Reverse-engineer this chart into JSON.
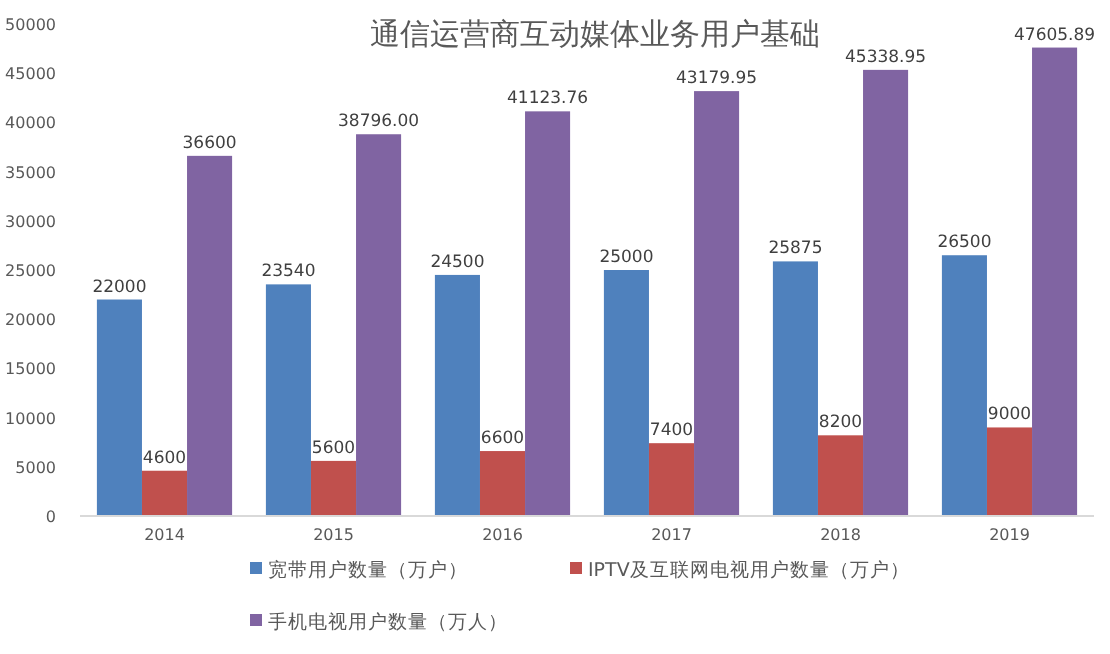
{
  "chart_data": {
    "type": "bar",
    "title": "通信运营商互动媒体业务用户基础",
    "categories": [
      "2014",
      "2015",
      "2016",
      "2017",
      "2018",
      "2019"
    ],
    "series": [
      {
        "name": "宽带用户数量（万户）",
        "color": "#4f81bd",
        "values": [
          22000,
          23540,
          24500,
          25000,
          25875,
          26500
        ],
        "value_labels": [
          "22000",
          "23540",
          "24500",
          "25000",
          "25875",
          "26500"
        ]
      },
      {
        "name": "IPTV及互联网电视用户数量（万户）",
        "color": "#c0504d",
        "values": [
          4600,
          5600,
          6600,
          7400,
          8200,
          9000
        ],
        "value_labels": [
          "4600",
          "5600",
          "6600",
          "7400",
          "8200",
          "9000"
        ]
      },
      {
        "name": "手机电视用户数量（万人）",
        "color": "#8064a2",
        "values": [
          36600,
          38796,
          41123.76,
          43179.95,
          45338.95,
          47605.89
        ],
        "value_labels": [
          "36600",
          "38796.00",
          "41123.76",
          "43179.95",
          "45338.95",
          "47605.89"
        ]
      }
    ],
    "ylim": [
      0,
      50000
    ],
    "yticks": [
      0,
      5000,
      10000,
      15000,
      20000,
      25000,
      30000,
      35000,
      40000,
      45000,
      50000
    ],
    "grid": false,
    "legend": "bottom"
  }
}
